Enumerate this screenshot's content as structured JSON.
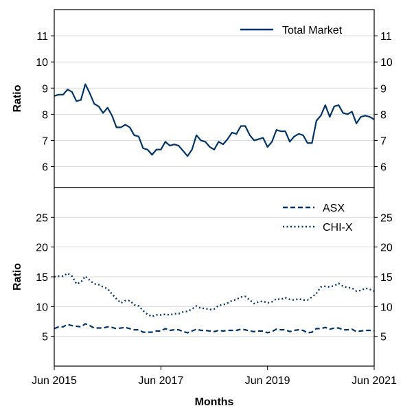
{
  "chart_data": [
    {
      "type": "line",
      "panel": "top",
      "ylabel": "Ratio",
      "ylim": [
        5.2,
        12
      ],
      "yticks": [
        6,
        7,
        8,
        9,
        10,
        11
      ],
      "ytick_labels": [
        "6",
        "7",
        "8",
        "9",
        "10",
        "11"
      ],
      "grid": true,
      "legend_position": "top-right",
      "x_start": "2015-06",
      "series": [
        {
          "name": "Total Market",
          "color": "#003366",
          "style": "solid",
          "values": [
            8.7,
            8.75,
            8.75,
            8.95,
            8.85,
            8.5,
            8.55,
            9.15,
            8.8,
            8.4,
            8.3,
            8.05,
            8.25,
            7.95,
            7.5,
            7.5,
            7.6,
            7.5,
            7.2,
            7.15,
            6.7,
            6.65,
            6.45,
            6.65,
            6.65,
            6.95,
            6.8,
            6.85,
            6.8,
            6.6,
            6.4,
            6.65,
            7.2,
            7.0,
            6.95,
            6.75,
            6.65,
            6.95,
            6.85,
            7.05,
            7.3,
            7.25,
            7.55,
            7.55,
            7.2,
            7.0,
            7.05,
            7.1,
            6.75,
            6.95,
            7.4,
            7.35,
            7.35,
            6.95,
            7.15,
            7.25,
            7.2,
            6.9,
            6.9,
            7.75,
            7.95,
            8.35,
            7.9,
            8.3,
            8.35,
            8.05,
            8.0,
            8.1,
            7.65,
            7.9,
            7.95,
            7.9,
            7.8
          ]
        }
      ]
    },
    {
      "type": "line",
      "panel": "bottom",
      "ylabel": "Ratio",
      "xlabel": "Months",
      "ylim": [
        0,
        30
      ],
      "yticks": [
        5,
        10,
        15,
        20,
        25
      ],
      "ytick_labels": [
        "5",
        "10",
        "15",
        "20",
        "25"
      ],
      "xtick_labels": [
        "Jun 2015",
        "Jun 2017",
        "Jun 2019",
        "Jun 2021"
      ],
      "grid": true,
      "legend_position": "top-right",
      "x_start": "2015-06",
      "series": [
        {
          "name": "ASX",
          "color": "#003366",
          "style": "dashed",
          "values": [
            6.3,
            6.6,
            6.6,
            7.0,
            6.8,
            6.7,
            6.6,
            7.1,
            6.8,
            6.4,
            6.4,
            6.4,
            6.6,
            6.5,
            6.3,
            6.4,
            6.5,
            6.3,
            6.1,
            6.1,
            5.7,
            5.7,
            5.7,
            5.9,
            5.9,
            6.3,
            6.0,
            6.1,
            6.1,
            5.8,
            5.6,
            5.9,
            6.2,
            6.0,
            6.0,
            5.9,
            5.8,
            6.0,
            5.9,
            6.0,
            6.0,
            6.0,
            6.2,
            6.1,
            5.9,
            5.8,
            5.9,
            5.9,
            5.6,
            5.8,
            6.2,
            6.1,
            6.1,
            5.8,
            6.0,
            6.1,
            6.0,
            5.6,
            5.7,
            6.3,
            6.3,
            6.5,
            6.2,
            6.4,
            6.4,
            6.1,
            6.1,
            6.2,
            5.8,
            5.9,
            6.0,
            6.0,
            5.9
          ]
        },
        {
          "name": "CHI-X",
          "color": "#003366",
          "style": "dotted",
          "values": [
            15.0,
            15.1,
            15.1,
            15.6,
            15.1,
            13.8,
            14.1,
            15.1,
            14.4,
            13.8,
            13.7,
            13.3,
            13.0,
            12.1,
            11.3,
            10.6,
            11.0,
            11.0,
            10.3,
            10.1,
            9.3,
            8.7,
            8.3,
            8.6,
            8.6,
            8.7,
            8.6,
            8.8,
            8.8,
            9.1,
            9.2,
            9.6,
            10.1,
            9.7,
            9.7,
            9.5,
            9.6,
            10.2,
            10.3,
            10.6,
            11.0,
            11.2,
            11.6,
            11.7,
            11.1,
            10.5,
            10.8,
            10.9,
            10.6,
            10.8,
            11.3,
            11.2,
            11.5,
            11.2,
            11.1,
            11.3,
            11.1,
            11.1,
            11.6,
            12.2,
            13.3,
            13.4,
            13.3,
            13.5,
            13.9,
            13.4,
            13.2,
            13.1,
            12.6,
            12.7,
            13.1,
            12.9,
            12.6
          ]
        }
      ]
    }
  ]
}
